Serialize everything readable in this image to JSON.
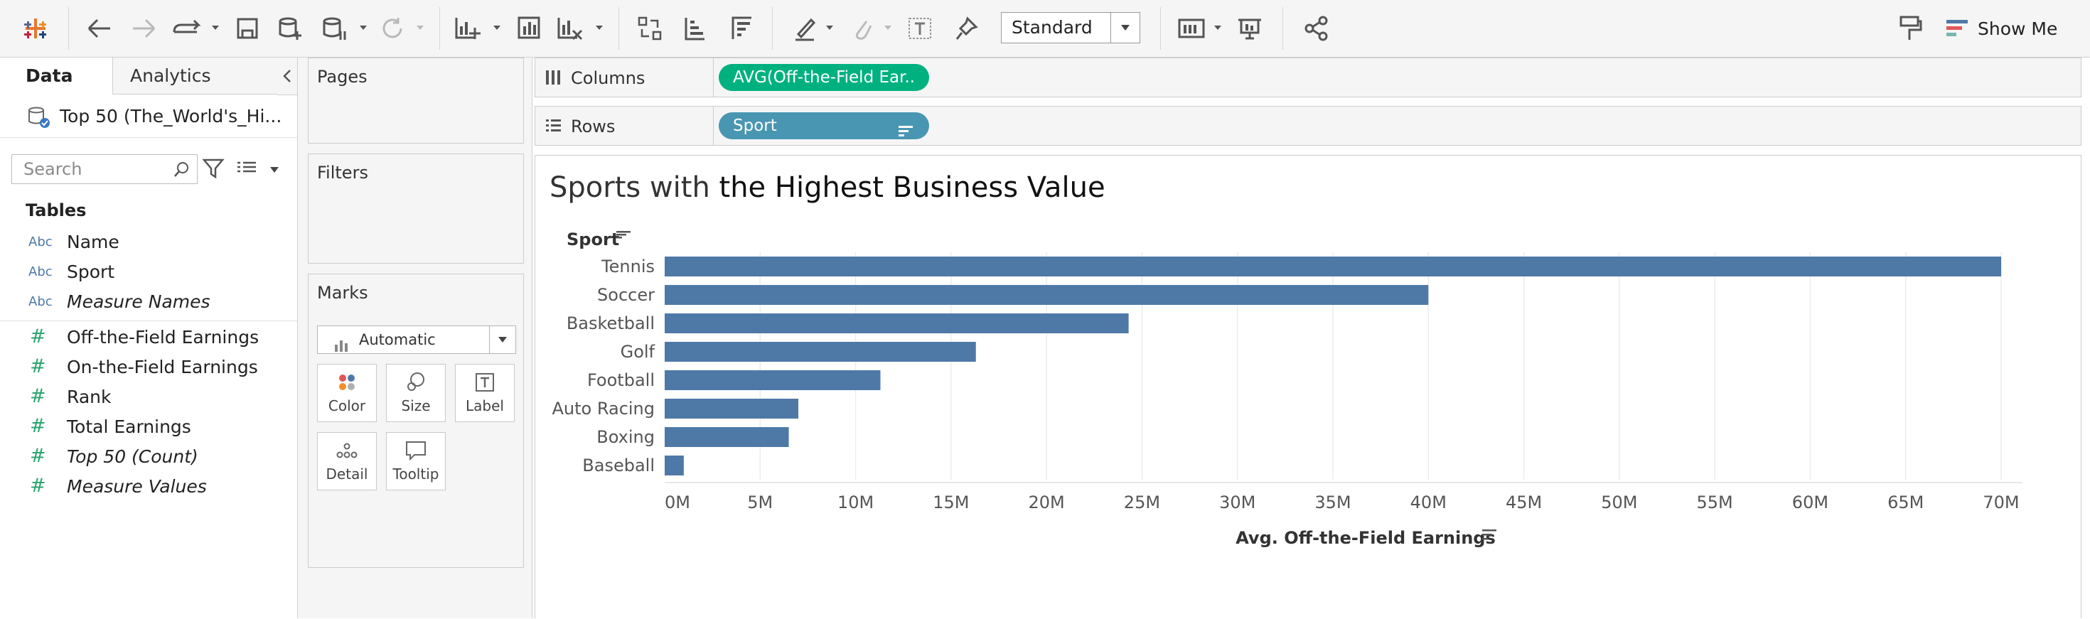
{
  "toolbar": {
    "view_select": "Standard",
    "show_me_label": "Show Me"
  },
  "data_pane": {
    "tabs": [
      "Data",
      "Analytics"
    ],
    "datasource": "Top 50 (The_World's_Hi...",
    "search_placeholder": "Search",
    "tables_heading": "Tables",
    "fields": [
      {
        "type": "Abc",
        "name": "Name",
        "italic": false
      },
      {
        "type": "Abc",
        "name": "Sport",
        "italic": false
      },
      {
        "type": "Abc",
        "name": "Measure Names",
        "italic": true
      },
      {
        "type": "#",
        "name": "Off-the-Field Earnings",
        "italic": false
      },
      {
        "type": "#",
        "name": "On-the-Field Earnings",
        "italic": false
      },
      {
        "type": "#",
        "name": "Rank",
        "italic": false
      },
      {
        "type": "#",
        "name": "Total Earnings",
        "italic": false
      },
      {
        "type": "#",
        "name": "Top 50 (Count)",
        "italic": true
      },
      {
        "type": "#",
        "name": "Measure Values",
        "italic": true
      }
    ]
  },
  "cards": {
    "pages": "Pages",
    "filters": "Filters",
    "marks": "Marks",
    "mark_type": "Automatic",
    "mark_buttons": [
      "Color",
      "Size",
      "Label",
      "Detail",
      "Tooltip"
    ]
  },
  "shelves": {
    "columns_label": "Columns",
    "columns_pill": "AVG(Off-the-Field Ear..",
    "rows_label": "Rows",
    "rows_pill": "Sport"
  },
  "viz": {
    "title_light": "Sports with ",
    "title_bold": "the Highest Business Value"
  },
  "chart_data": {
    "type": "bar",
    "orientation": "horizontal",
    "title": "Sports with the Highest Business Value",
    "ylabel": "Sport",
    "xlabel": "Avg. Off-the-Field Earnings",
    "categories": [
      "Tennis",
      "Soccer",
      "Basketball",
      "Golf",
      "Football",
      "Auto Racing",
      "Boxing",
      "Baseball"
    ],
    "values": [
      70000000,
      40000000,
      24300000,
      16300000,
      11300000,
      7000000,
      6500000,
      1000000
    ],
    "xlim": [
      0,
      70000000
    ],
    "xticks": [
      0,
      5000000,
      10000000,
      15000000,
      20000000,
      25000000,
      30000000,
      35000000,
      40000000,
      45000000,
      50000000,
      55000000,
      60000000,
      65000000,
      70000000
    ],
    "xtick_labels": [
      "0M",
      "5M",
      "10M",
      "15M",
      "20M",
      "25M",
      "30M",
      "35M",
      "40M",
      "45M",
      "50M",
      "55M",
      "60M",
      "65M",
      "70M"
    ],
    "bar_color": "#4e79a7",
    "grid": "vertical"
  }
}
